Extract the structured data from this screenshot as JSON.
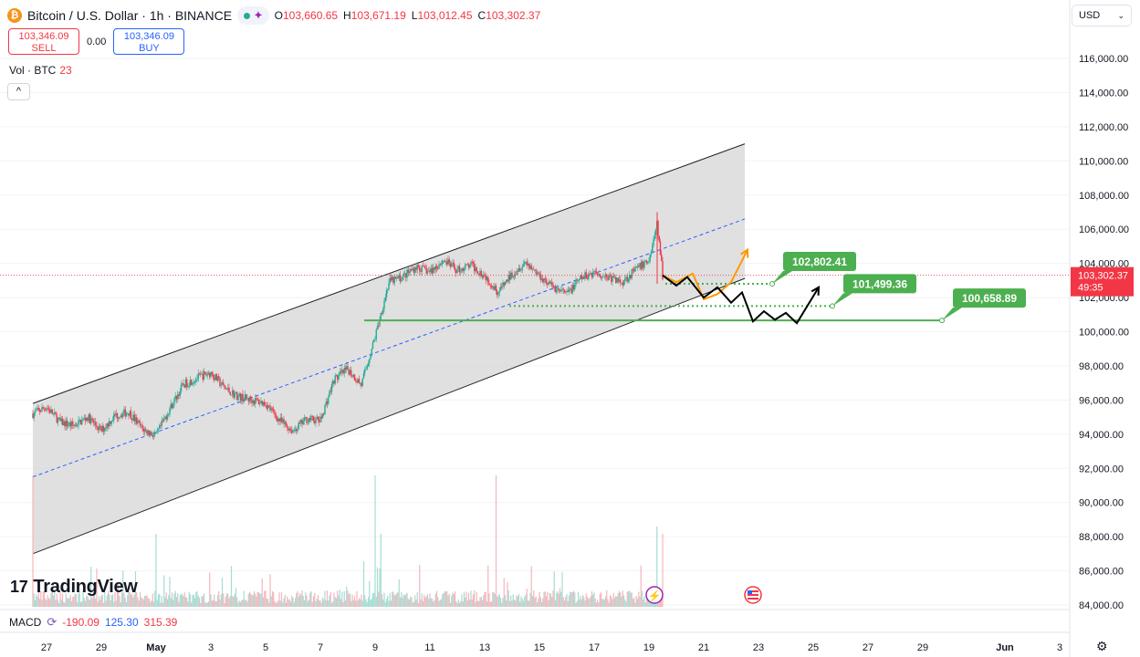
{
  "header": {
    "symbol_icon": "₿",
    "title": "Bitcoin / U.S. Dollar · 1h · BINANCE",
    "pill_icon": "share-icon",
    "ohlc": [
      {
        "k": "O",
        "v": "103,660.65"
      },
      {
        "k": "H",
        "v": "103,671.19"
      },
      {
        "k": "L",
        "v": "103,012.45"
      },
      {
        "k": "C",
        "v": "103,302.37"
      }
    ]
  },
  "trade": {
    "sell_price": "103,346.09",
    "sell_label": "SELL",
    "spread": "0.00",
    "buy_price": "103,346.09",
    "buy_label": "BUY"
  },
  "volume": {
    "label": "Vol · BTC",
    "value": "23"
  },
  "collapse_icon": "^",
  "currency": {
    "label": "USD",
    "chevron": "⌄"
  },
  "logo": {
    "mark": "17",
    "text": "TradingView"
  },
  "macd": {
    "label": "MACD",
    "v1": "-190.09",
    "v2": "125.30",
    "v3": "315.39"
  },
  "settings_icon": "⚙",
  "colors": {
    "up": "#22ab94",
    "down": "#f23645",
    "accent": "#2962ff",
    "level_bg": "#4caf50",
    "level_line": "#4caf50",
    "orange_path": "#ff9800",
    "black_path": "#000000",
    "channel_fill": "#d6d6d6"
  },
  "chart_data": {
    "type": "candlestick",
    "y_ticks": [
      "116,000.00",
      "114,000.00",
      "112,000.00",
      "110,000.00",
      "108,000.00",
      "106,000.00",
      "104,000.00",
      "102,000.00",
      "100,000.00",
      "98,000.00",
      "96,000.00",
      "94,000.00",
      "92,000.00",
      "90,000.00",
      "88,000.00",
      "86,000.00",
      "84,000.00"
    ],
    "y_tick_values": [
      116000,
      114000,
      112000,
      110000,
      108000,
      106000,
      104000,
      102000,
      100000,
      98000,
      96000,
      94000,
      92000,
      90000,
      88000,
      86000,
      84000
    ],
    "ylim": [
      84000,
      117000
    ],
    "x_ticks": [
      "27",
      "29",
      "May",
      "3",
      "5",
      "7",
      "9",
      "11",
      "13",
      "15",
      "17",
      "19",
      "21",
      "23",
      "25",
      "27",
      "29",
      "Jun",
      "3"
    ],
    "x_tick_days": [
      -4,
      -2,
      0,
      2,
      4,
      6,
      8,
      10,
      12,
      14,
      16,
      18,
      20,
      22,
      24,
      26,
      28,
      31,
      33
    ],
    "current_price": {
      "value": 103302.37,
      "label": "103,302.37",
      "countdown": "49:35"
    },
    "levels": [
      {
        "value": 102802.41,
        "label": "102,802.41",
        "style": "dotted"
      },
      {
        "value": 101499.36,
        "label": "101,499.36",
        "style": "dotted"
      },
      {
        "value": 100658.89,
        "label": "100,658.89",
        "style": "solid"
      }
    ],
    "channel": {
      "lower": [
        [
          -4.5,
          87000
        ],
        [
          20.5,
          102500
        ]
      ],
      "upper": [
        [
          -4.5,
          95800
        ],
        [
          21.5,
          111000
        ]
      ],
      "mid": [
        [
          -4.5,
          91500
        ],
        [
          21.5,
          106600
        ]
      ]
    },
    "price_path": [
      [
        -4.5,
        95200
      ],
      [
        -4,
        95600
      ],
      [
        -3.5,
        94700
      ],
      [
        -3,
        94500
      ],
      [
        -2.5,
        95000
      ],
      [
        -2,
        94200
      ],
      [
        -1.5,
        95100
      ],
      [
        -1,
        95300
      ],
      [
        -0.5,
        94300
      ],
      [
        0,
        93900
      ],
      [
        0.5,
        95500
      ],
      [
        1,
        96900
      ],
      [
        1.5,
        97300
      ],
      [
        2,
        97600
      ],
      [
        2.5,
        96700
      ],
      [
        3,
        96200
      ],
      [
        3.5,
        96000
      ],
      [
        4,
        95800
      ],
      [
        4.5,
        94800
      ],
      [
        5,
        94200
      ],
      [
        5.5,
        94900
      ],
      [
        6,
        94800
      ],
      [
        6.5,
        97200
      ],
      [
        7,
        97800
      ],
      [
        7.5,
        96900
      ],
      [
        8,
        99700
      ],
      [
        8.5,
        102900
      ],
      [
        9,
        103200
      ],
      [
        9.5,
        103800
      ],
      [
        10,
        103500
      ],
      [
        10.5,
        104200
      ],
      [
        11,
        103600
      ],
      [
        11.5,
        103900
      ],
      [
        12,
        103300
      ],
      [
        12.5,
        102300
      ],
      [
        13,
        103400
      ],
      [
        13.5,
        104100
      ],
      [
        14,
        103300
      ],
      [
        14.5,
        102600
      ],
      [
        15,
        102200
      ],
      [
        15.5,
        103100
      ],
      [
        16,
        103500
      ],
      [
        16.5,
        103200
      ],
      [
        17,
        102900
      ],
      [
        17.5,
        103600
      ],
      [
        18,
        104200
      ],
      [
        18.3,
        106300
      ],
      [
        18.5,
        103300
      ]
    ],
    "volume_spikes": [
      [
        -4.5,
        0.9
      ],
      [
        8,
        0.9
      ],
      [
        8.2,
        0.5
      ],
      [
        12.4,
        0.9
      ],
      [
        18.3,
        0.55
      ],
      [
        18.5,
        0.5
      ],
      [
        0,
        0.5
      ]
    ],
    "projection_orange": [
      [
        18.5,
        103300
      ],
      [
        19,
        102900
      ],
      [
        19.6,
        103400
      ],
      [
        20,
        101900
      ],
      [
        20.5,
        102200
      ],
      [
        21,
        102900
      ],
      [
        21.6,
        104800
      ]
    ],
    "projection_black": [
      [
        18.5,
        103300
      ],
      [
        19,
        102700
      ],
      [
        19.4,
        103200
      ],
      [
        20,
        102000
      ],
      [
        20.5,
        102600
      ],
      [
        21,
        101700
      ],
      [
        21.4,
        102300
      ],
      [
        21.8,
        100600
      ],
      [
        22.2,
        101200
      ],
      [
        22.6,
        100700
      ],
      [
        23,
        101100
      ],
      [
        23.4,
        100500
      ],
      [
        24.2,
        102600
      ]
    ],
    "projection_black_2": [
      [
        19.8,
        101900
      ],
      [
        20.6,
        102700
      ],
      [
        21,
        102000
      ]
    ]
  }
}
